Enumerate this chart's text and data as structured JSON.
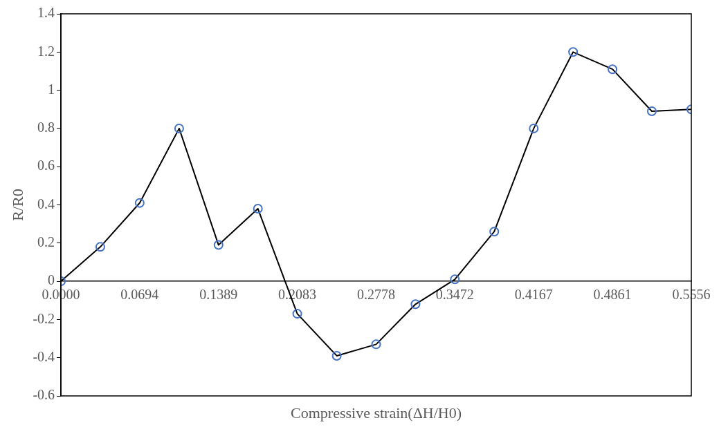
{
  "chart_data": {
    "type": "line",
    "xlabel": "Compressive strain(ΔH/H0)",
    "ylabel": "R/R0",
    "x": [
      0,
      0.0347,
      0.0694,
      0.1042,
      0.1389,
      0.1736,
      0.2083,
      0.2431,
      0.2778,
      0.3125,
      0.3472,
      0.3819,
      0.4167,
      0.4514,
      0.4861,
      0.5208,
      0.5556
    ],
    "series": [
      {
        "color": "#000000",
        "values": [
          0,
          0.18,
          0.41,
          0.8,
          0.19,
          0.38,
          -0.17,
          -0.39,
          -0.33,
          -0.12,
          0.01,
          0.26,
          0.8,
          1.2,
          1.11,
          0.89,
          0.9
        ]
      }
    ],
    "xlim": [
      0,
      0.5556
    ],
    "xticks": [
      {
        "value": 0,
        "label": "0.0000"
      },
      0.0694,
      0.1389,
      0.2083,
      0.2778,
      0.3472,
      0.4167,
      0.4861,
      0.5556
    ],
    "ylim": [
      -0.6,
      1.4
    ],
    "yticks": [
      -0.6,
      -0.4,
      -0.2,
      0,
      0.2,
      0.4,
      0.6,
      0.8,
      1,
      1.2,
      1.4
    ],
    "grid": false,
    "legend": false,
    "marker": "circle",
    "line_style": "solid"
  }
}
